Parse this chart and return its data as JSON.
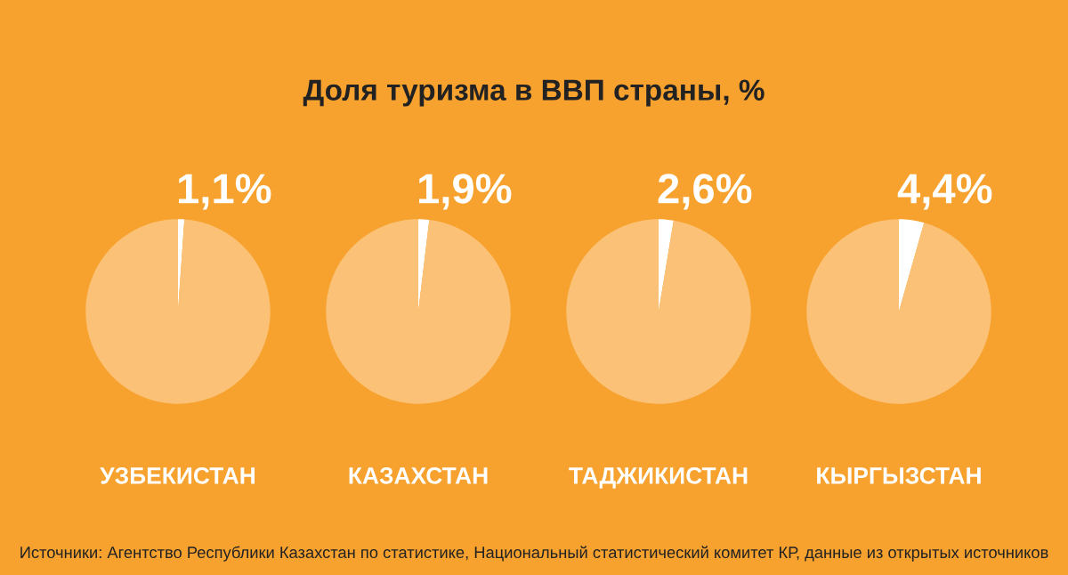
{
  "chart_data": [
    {
      "type": "pie",
      "title": "Доля туризма в ВВП страны, %",
      "xlabel": "УЗБЕКИСТАН",
      "categories": [
        null,
        null
      ],
      "values": [
        1.1,
        98.9
      ],
      "value_labels": [
        "1,1%",
        null
      ],
      "colors": [
        "#ffffff",
        "#fbc277"
      ]
    },
    {
      "type": "pie",
      "xlabel": "КАЗАХСТАН",
      "categories": [
        null,
        null
      ],
      "values": [
        1.9,
        98.1
      ],
      "value_labels": [
        "1,9%",
        null
      ],
      "colors": [
        "#ffffff",
        "#fbc277"
      ]
    },
    {
      "type": "pie",
      "xlabel": "ТАДЖИКИСТАН",
      "categories": [
        null,
        null
      ],
      "values": [
        2.6,
        97.4
      ],
      "value_labels": [
        "2,6%",
        null
      ],
      "colors": [
        "#ffffff",
        "#fbc277"
      ]
    },
    {
      "type": "pie",
      "xlabel": "КЫРГЫЗСТАН",
      "categories": [
        null,
        null
      ],
      "values": [
        4.4,
        95.6
      ],
      "value_labels": [
        "4,4%",
        null
      ],
      "colors": [
        "#ffffff",
        "#fbc277"
      ],
      "annotations": [
        "Источники: Агентство Республики Казахстан по статистике, Национальный статистический комитет КР, данные из открытых источников"
      ]
    }
  ]
}
